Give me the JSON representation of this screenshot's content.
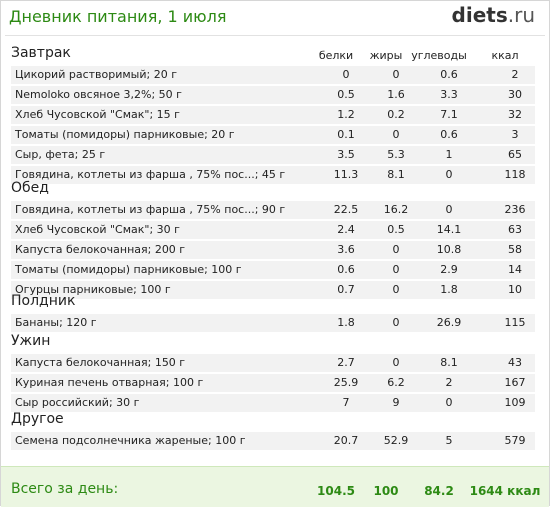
{
  "header": {
    "title": "Дневник питания, 1 июля",
    "logo_main": "diets",
    "logo_suffix": ".ru"
  },
  "columns": [
    "белки",
    "жиры",
    "углеводы",
    "ккал"
  ],
  "sections": [
    {
      "name": "Завтрак",
      "rows": [
        {
          "name": "Цикорий растворимый; 20 г",
          "p": "0",
          "f": "0",
          "c": "0.6",
          "k": "2"
        },
        {
          "name": "Nemoloko овсяное 3,2%; 50 г",
          "p": "0.5",
          "f": "1.6",
          "c": "3.3",
          "k": "30"
        },
        {
          "name": "Хлеб Чусовской \"Смак\"; 15 г",
          "p": "1.2",
          "f": "0.2",
          "c": "7.1",
          "k": "32"
        },
        {
          "name": "Томаты (помидоры) парниковые; 20 г",
          "p": "0.1",
          "f": "0",
          "c": "0.6",
          "k": "3"
        },
        {
          "name": "Сыр, фета; 25 г",
          "p": "3.5",
          "f": "5.3",
          "c": "1",
          "k": "65"
        },
        {
          "name": "Говядина, котлеты из фарша , 75% пос...; 45 г",
          "p": "11.3",
          "f": "8.1",
          "c": "0",
          "k": "118"
        }
      ]
    },
    {
      "name": "Обед",
      "rows": [
        {
          "name": "Говядина, котлеты из фарша , 75% пос...; 90 г",
          "p": "22.5",
          "f": "16.2",
          "c": "0",
          "k": "236"
        },
        {
          "name": "Хлеб Чусовской \"Смак\"; 30 г",
          "p": "2.4",
          "f": "0.5",
          "c": "14.1",
          "k": "63"
        },
        {
          "name": "Капуста белокочанная; 200 г",
          "p": "3.6",
          "f": "0",
          "c": "10.8",
          "k": "58"
        },
        {
          "name": "Томаты (помидоры) парниковые; 100 г",
          "p": "0.6",
          "f": "0",
          "c": "2.9",
          "k": "14"
        },
        {
          "name": "Огурцы парниковые; 100 г",
          "p": "0.7",
          "f": "0",
          "c": "1.8",
          "k": "10"
        }
      ]
    },
    {
      "name": "Полдник",
      "rows": [
        {
          "name": "Бананы; 120 г",
          "p": "1.8",
          "f": "0",
          "c": "26.9",
          "k": "115"
        }
      ]
    },
    {
      "name": "Ужин",
      "rows": [
        {
          "name": "Капуста белокочанная; 150 г",
          "p": "2.7",
          "f": "0",
          "c": "8.1",
          "k": "43"
        },
        {
          "name": "Куриная печень отварная; 100 г",
          "p": "25.9",
          "f": "6.2",
          "c": "2",
          "k": "167"
        },
        {
          "name": "Сыр российский; 30 г",
          "p": "7",
          "f": "9",
          "c": "0",
          "k": "109"
        }
      ]
    },
    {
      "name": "Другое",
      "rows": [
        {
          "name": "Семена подсолнечника жареные; 100 г",
          "p": "20.7",
          "f": "52.9",
          "c": "5",
          "k": "579"
        }
      ]
    }
  ],
  "total": {
    "label": "Всего за день:",
    "p": "104.5",
    "f": "100",
    "c": "84.2",
    "k": "1644 ккал"
  }
}
